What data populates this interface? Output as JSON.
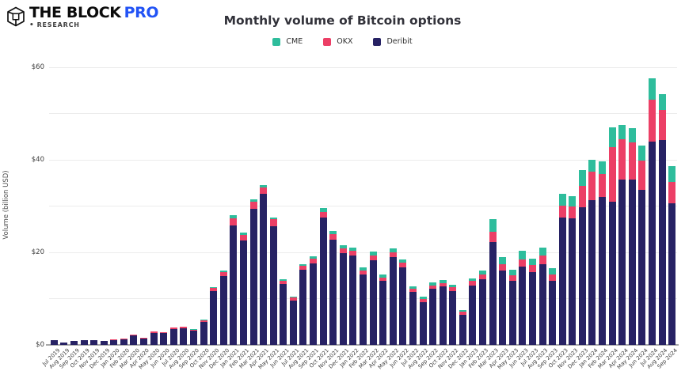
{
  "brand": {
    "name_part1": "THE BLOCK",
    "name_part2": "PRO",
    "sub_bullet": "•",
    "sub_label": "RESEARCH",
    "pro_color": "#2253f5",
    "text_color": "#0b0b0b"
  },
  "chart_data": {
    "type": "bar",
    "stacked": true,
    "title": "Monthly volume of Bitcoin options",
    "xlabel": "",
    "ylabel": "Volume (billion USD)",
    "ylim": [
      0,
      60
    ],
    "yticks": [
      0,
      20,
      40,
      60
    ],
    "ytick_labels": [
      "$0",
      "$20",
      "$40",
      "$60"
    ],
    "gridlines_every": 10,
    "grid": true,
    "legend_position": "top-center",
    "stack_order_bottom_to_top": [
      "Deribit",
      "OKX",
      "CME"
    ],
    "categories": [
      "Jul 2019",
      "Aug 2019",
      "Sep 2019",
      "Oct 2019",
      "Nov 2019",
      "Dec 2019",
      "Jan 2020",
      "Feb 2020",
      "Mar 2020",
      "Apr 2020",
      "May 2020",
      "Jun 2020",
      "Jul 2020",
      "Aug 2020",
      "Sep 2020",
      "Oct 2020",
      "Nov 2020",
      "Dec 2020",
      "Jan 2021",
      "Feb 2021",
      "Mar 2021",
      "Apr 2021",
      "May 2021",
      "Jun 2021",
      "Jul 2021",
      "Aug 2021",
      "Sep 2021",
      "Oct 2021",
      "Nov 2021",
      "Dec 2021",
      "Jan 2022",
      "Feb 2022",
      "Mar 2022",
      "Apr 2022",
      "May 2022",
      "Jun 2022",
      "Jul 2022",
      "Aug 2022",
      "Sep 2022",
      "Oct 2022",
      "Nov 2022",
      "Dec 2022",
      "Jan 2023",
      "Feb 2023",
      "Mar 2023",
      "Apr 2023",
      "May 2023",
      "Jun 2023",
      "Jul 2023",
      "Aug 2023",
      "Sep 2023",
      "Oct 2023",
      "Nov 2023",
      "Dec 2023",
      "Jan 2024",
      "Feb 2024",
      "Mar 2024",
      "Apr 2024",
      "May 2024",
      "Jun 2024",
      "Jul 2024",
      "Aug 2024",
      "Sep 2024"
    ],
    "series": [
      {
        "name": "CME",
        "color": "#2ebd9c",
        "values": [
          0,
          0,
          0,
          0,
          0,
          0,
          0,
          0,
          0,
          0,
          0,
          0,
          0,
          0,
          0.1,
          0.1,
          0.15,
          0.3,
          0.6,
          0.5,
          0.6,
          0.5,
          0.4,
          0.3,
          0.3,
          0.4,
          0.5,
          0.7,
          0.8,
          0.7,
          0.8,
          0.7,
          0.8,
          0.7,
          0.8,
          0.7,
          0.5,
          0.5,
          0.6,
          0.6,
          0.5,
          0.4,
          0.6,
          0.8,
          2.6,
          1.4,
          1.2,
          1.8,
          1.3,
          1.7,
          1.3,
          2.5,
          2.3,
          3.4,
          2.6,
          2.6,
          4.3,
          3.1,
          3.2,
          3.3,
          4.6,
          3.4,
          3.4
        ]
      },
      {
        "name": "OKX",
        "color": "#ec3f66",
        "values": [
          0,
          0,
          0,
          0,
          0,
          0,
          0.05,
          0.1,
          0.15,
          0.1,
          0.25,
          0.2,
          0.3,
          0.35,
          0.3,
          0.4,
          0.75,
          0.8,
          1.5,
          1.3,
          1.5,
          1.4,
          1.5,
          0.8,
          0.6,
          0.9,
          1.0,
          1.3,
          1.2,
          0.9,
          0.9,
          0.8,
          1.0,
          0.8,
          1.0,
          0.9,
          0.8,
          0.7,
          0.8,
          0.8,
          0.9,
          0.6,
          0.9,
          1.0,
          2.3,
          1.5,
          1.3,
          1.6,
          1.5,
          1.9,
          1.5,
          2.5,
          2.6,
          4.6,
          6.1,
          5.0,
          11.7,
          8.7,
          8.0,
          6.3,
          9.1,
          6.6,
          4.6
        ]
      },
      {
        "name": "Deribit",
        "color": "#272264",
        "values": [
          1.1,
          0.6,
          0.8,
          1.0,
          1.0,
          0.8,
          1.1,
          1.3,
          2.0,
          1.5,
          2.65,
          2.5,
          3.4,
          3.55,
          3.0,
          5.0,
          11.6,
          14.9,
          25.9,
          22.5,
          29.4,
          32.7,
          25.7,
          13.1,
          9.6,
          16.2,
          17.6,
          27.5,
          22.7,
          19.9,
          19.4,
          15.2,
          18.3,
          13.8,
          19.0,
          16.8,
          11.4,
          9.2,
          12.1,
          12.6,
          11.6,
          6.5,
          12.9,
          14.2,
          22.2,
          16.0,
          13.8,
          16.9,
          15.8,
          17.4,
          13.8,
          27.6,
          27.3,
          29.8,
          31.3,
          32.0,
          31.0,
          35.7,
          35.7,
          33.5,
          43.9,
          44.2,
          30.6
        ]
      }
    ],
    "colors": {
      "grid": "#ececec",
      "axis_line": "#a8a8a8",
      "tick_text": "#3a3a3a",
      "title_text": "#32323a"
    }
  }
}
